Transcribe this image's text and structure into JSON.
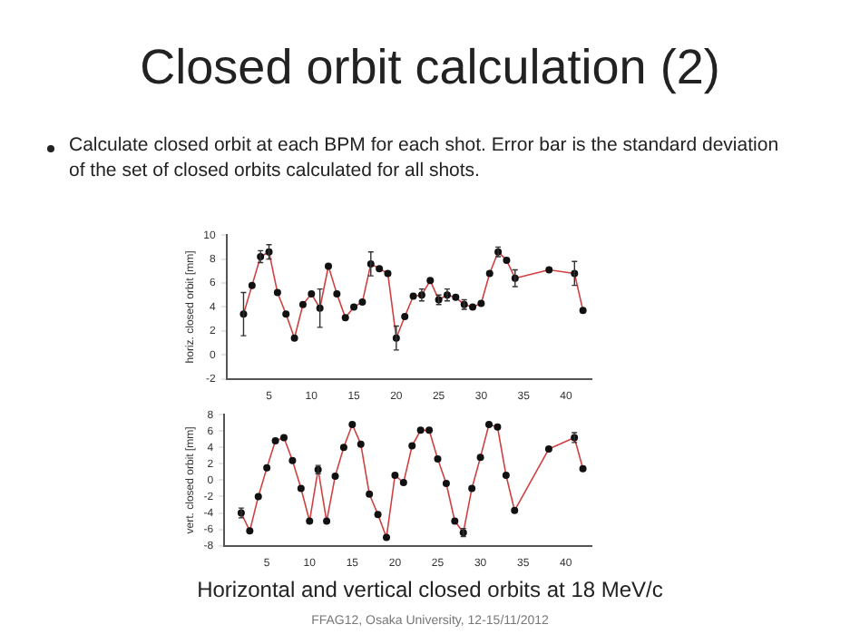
{
  "chart_data": [
    {
      "type": "line",
      "title": "Closed orbit calculation (2)",
      "subtitle": "Calculate closed orbit at each BPM for each shot. Error bar is the standard deviation of the set of closed orbits calculated for all shots.",
      "ylabel": "horiz. closed orbit [mm]",
      "x": [
        2,
        3,
        4,
        5,
        6,
        7,
        8,
        9,
        10,
        11,
        12,
        13,
        14,
        15,
        16,
        17,
        18,
        19,
        20,
        21,
        22,
        23,
        24,
        25,
        26,
        27,
        28,
        29,
        30,
        31,
        32,
        33,
        34,
        38,
        41,
        42
      ],
      "series": [
        {
          "color": "#d04040",
          "values": [
            3.4,
            5.8,
            8.2,
            8.6,
            5.2,
            3.4,
            1.4,
            4.2,
            5.1,
            3.9,
            7.4,
            5.1,
            3.1,
            4.0,
            4.4,
            7.6,
            7.2,
            6.8,
            1.4,
            3.2,
            4.9,
            5.0,
            6.2,
            4.6,
            5.0,
            4.8,
            4.2,
            4.0,
            4.3,
            6.8,
            8.6,
            7.9,
            6.4,
            7.1,
            6.8,
            3.7
          ],
          "errors": [
            1.8,
            null,
            0.5,
            0.6,
            null,
            null,
            null,
            null,
            null,
            1.6,
            null,
            null,
            null,
            null,
            null,
            1.0,
            null,
            null,
            1.0,
            null,
            null,
            0.5,
            null,
            0.4,
            0.5,
            null,
            0.4,
            null,
            null,
            null,
            0.4,
            null,
            0.7,
            null,
            1.0,
            null
          ]
        }
      ],
      "xlim": [
        0,
        43
      ],
      "xticks": [
        5,
        10,
        15,
        20,
        25,
        30,
        35,
        40
      ],
      "ylim": [
        -2,
        10
      ],
      "yticks": [
        -2,
        0,
        2,
        4,
        6,
        8,
        10
      ],
      "marker": "circle",
      "line_style": "solid",
      "grid": false,
      "legend": false
    },
    {
      "type": "line",
      "ylabel": "vert. closed orbit [mm]",
      "x": [
        2,
        3,
        4,
        5,
        6,
        7,
        8,
        9,
        10,
        11,
        12,
        13,
        14,
        15,
        16,
        17,
        18,
        19,
        20,
        21,
        22,
        23,
        24,
        25,
        26,
        27,
        28,
        29,
        30,
        31,
        32,
        33,
        34,
        38,
        41,
        42
      ],
      "series": [
        {
          "color": "#d04040",
          "values": [
            -4,
            -6.2,
            -2,
            1.5,
            4.8,
            5.2,
            2.4,
            -1,
            -5,
            1.3,
            -5,
            0.5,
            4,
            6.8,
            4.4,
            -1.7,
            -4.2,
            -7,
            0.6,
            -0.3,
            4.2,
            6.1,
            6.1,
            2.6,
            -0.4,
            -5,
            -6.4,
            -1,
            2.8,
            6.8,
            6.5,
            0.6,
            -3.7,
            3.8,
            5.2,
            1.4
          ],
          "errors": [
            0.6,
            null,
            null,
            null,
            null,
            null,
            null,
            null,
            null,
            0.5,
            null,
            null,
            null,
            null,
            null,
            null,
            null,
            null,
            null,
            null,
            null,
            null,
            null,
            null,
            null,
            null,
            0.5,
            null,
            null,
            null,
            null,
            null,
            null,
            null,
            0.6,
            null
          ]
        }
      ],
      "xlim": [
        0,
        43
      ],
      "xticks": [
        5,
        10,
        15,
        20,
        25,
        30,
        35,
        40
      ],
      "ylim": [
        -8,
        8
      ],
      "yticks": [
        -8,
        -6,
        -4,
        -2,
        0,
        2,
        4,
        6,
        8
      ],
      "marker": "circle",
      "line_style": "solid",
      "grid": false,
      "legend": false,
      "annotations": [
        "Horizontal and vertical closed orbits at 18 MeV/c",
        "FFAG12, Osaka University, 12-15/11/2012"
      ]
    }
  ]
}
